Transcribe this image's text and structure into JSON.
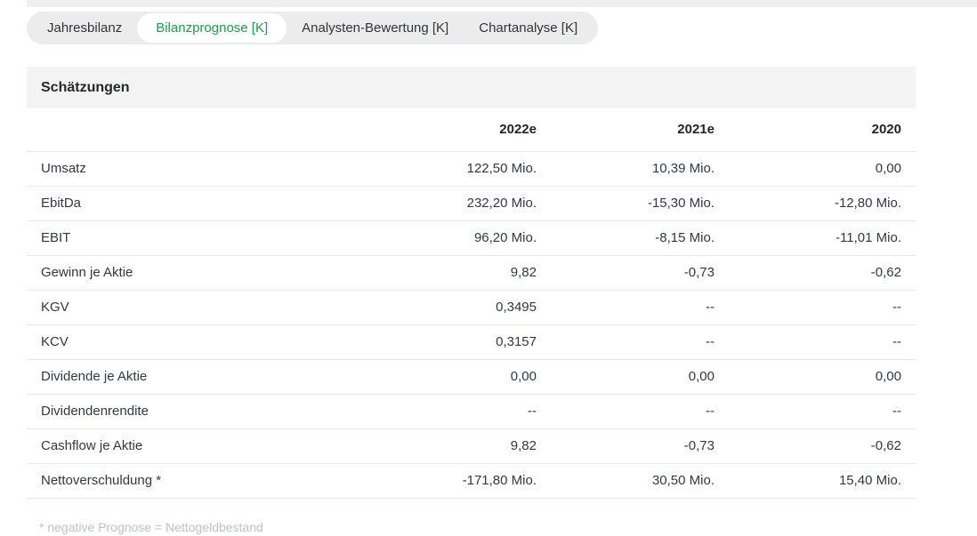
{
  "colors": {
    "accent_green": "#1b9e4d",
    "tab_bar_bg": "#ececec",
    "section_band_bg": "#f3f3f3",
    "separator": "#e7e7e7",
    "footnote_text": "#b9c1ca"
  },
  "tabs": {
    "items": [
      {
        "id": "jahresbilanz",
        "label": "Jahresbilanz",
        "active": false
      },
      {
        "id": "bilanzprognose",
        "label": "Bilanzprognose [K]",
        "active": true
      },
      {
        "id": "analysten-bewertung",
        "label": "Analysten-Bewertung [K]",
        "active": false
      },
      {
        "id": "chartanalyse",
        "label": "Chartanalyse [K]",
        "active": false
      }
    ]
  },
  "section": {
    "title": "Schätzungen"
  },
  "table": {
    "columns": [
      "",
      "2022e",
      "2021e",
      "2020"
    ],
    "rows": [
      {
        "label": "Umsatz",
        "values": [
          "122,50 Mio.",
          "10,39 Mio.",
          "0,00"
        ]
      },
      {
        "label": "EbitDa",
        "values": [
          "232,20 Mio.",
          "-15,30 Mio.",
          "-12,80 Mio."
        ]
      },
      {
        "label": "EBIT",
        "values": [
          "96,20 Mio.",
          "-8,15 Mio.",
          "-11,01 Mio."
        ]
      },
      {
        "label": "Gewinn je Aktie",
        "values": [
          "9,82",
          "-0,73",
          "-0,62"
        ]
      },
      {
        "label": "KGV",
        "values": [
          "0,3495",
          "--",
          "--"
        ]
      },
      {
        "label": "KCV",
        "values": [
          "0,3157",
          "--",
          "--"
        ]
      },
      {
        "label": "Dividende je Aktie",
        "values": [
          "0,00",
          "0,00",
          "0,00"
        ]
      },
      {
        "label": "Dividendenrendite",
        "values": [
          "--",
          "--",
          "--"
        ]
      },
      {
        "label": "Cashflow je Aktie",
        "values": [
          "9,82",
          "-0,73",
          "-0,62"
        ]
      },
      {
        "label": "Nettoverschuldung *",
        "values": [
          "-171,80 Mio.",
          "30,50 Mio.",
          "15,40 Mio."
        ]
      }
    ]
  },
  "footnote": "* negative Prognose = Nettogeldbestand"
}
